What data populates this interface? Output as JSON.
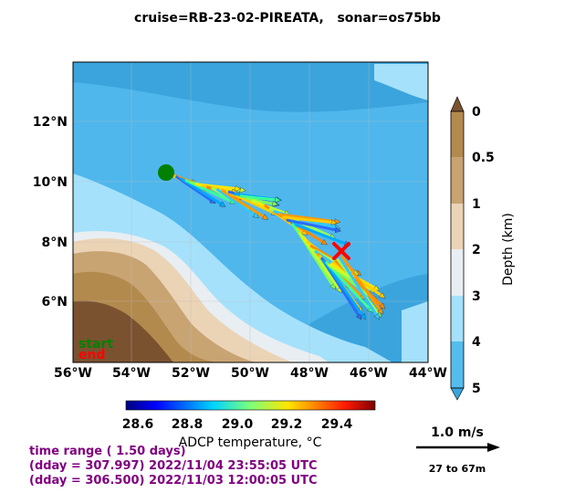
{
  "title": "cruise=RB-23-02-PIREATA,   sonar=os75bb",
  "map": {
    "x_ticks": [
      "56°W",
      "54°W",
      "52°W",
      "50°W",
      "48°W",
      "46°W",
      "44°W"
    ],
    "y_ticks": [
      "12°N",
      "10°N",
      "8°N",
      "6°N"
    ],
    "legend": {
      "start": "start",
      "end": "end",
      "start_color": "#008000",
      "end_color": "#ff0000"
    },
    "track_start": {
      "lon": -52.8,
      "lat": 10.3
    },
    "track_end": {
      "lon": -47.0,
      "lat": 7.8
    }
  },
  "depth_colorbar": {
    "label": "Depth (km)",
    "ticks": [
      "0",
      "0.5",
      "1",
      "2",
      "3",
      "4",
      "5"
    ],
    "colors": [
      "#b38a4e",
      "#c8a473",
      "#ebd4b6",
      "#e8eef2",
      "#a5e1fb",
      "#55bced",
      "#3ba4dd"
    ]
  },
  "temp_colorbar": {
    "label": "ADCP temperature, °C",
    "ticks": [
      "28.6",
      "28.8",
      "29.0",
      "29.2",
      "29.4"
    ]
  },
  "scale": {
    "label": "1.0 m/s",
    "depth_range": "27 to 67m"
  },
  "footer": {
    "line1": "time range ( 1.50 days)",
    "line2": "(dday = 307.997) 2022/11/04 23:55:05 UTC",
    "line3": "(dday = 306.500) 2022/11/03 12:00:05 UTC"
  }
}
